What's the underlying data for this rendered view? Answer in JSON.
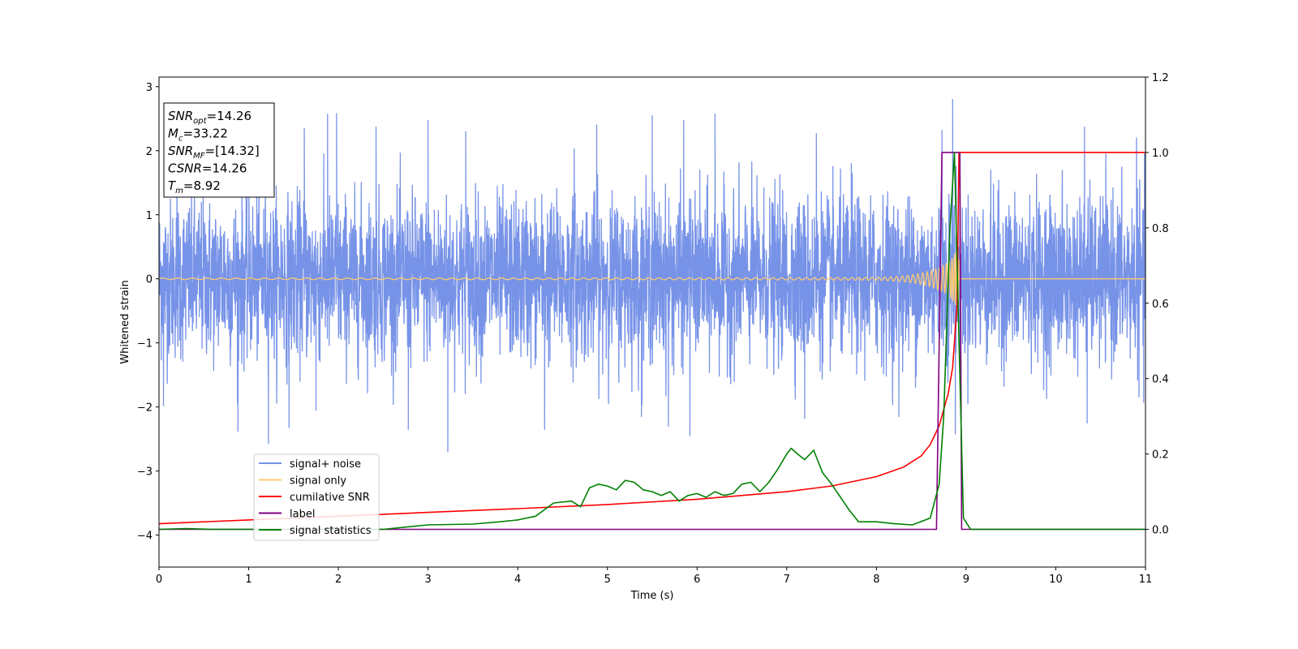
{
  "chart_data": {
    "type": "line",
    "xlabel": "Time (s)",
    "ylabel": "Whitened strain",
    "xlim": [
      0,
      11
    ],
    "ylim": [
      -4.5,
      3.15
    ],
    "y2lim": [
      -0.1,
      1.2
    ],
    "x_ticks": [
      0,
      1,
      2,
      3,
      4,
      5,
      6,
      7,
      8,
      9,
      10,
      11
    ],
    "y_ticks": [
      -4,
      -3,
      -2,
      -1,
      0,
      1,
      2,
      3
    ],
    "y2_ticks": [
      0.0,
      0.2,
      0.4,
      0.6,
      0.8,
      1.0,
      1.2
    ],
    "x_tick_labels": [
      "0",
      "1",
      "2",
      "3",
      "4",
      "5",
      "6",
      "7",
      "8",
      "9",
      "10",
      "11"
    ],
    "y_tick_labels": [
      "−4",
      "−3",
      "−2",
      "−1",
      "0",
      "1",
      "2",
      "3"
    ],
    "y2_tick_labels": [
      "0.0",
      "0.2",
      "0.4",
      "0.6",
      "0.8",
      "1.0",
      "1.2"
    ],
    "legend_position": "lower-left",
    "annotation": {
      "lines": [
        {
          "main": "SNR",
          "sub": "opt",
          "rest": "=14.26"
        },
        {
          "main": "M",
          "sub": "c",
          "rest": "=33.22"
        },
        {
          "main": "SNR",
          "sub": "MF",
          "rest": "=[14.32]"
        },
        {
          "main": "CSNR",
          "sub": "",
          "rest": "=14.26"
        },
        {
          "main": "T",
          "sub": "m",
          "rest": "=8.92"
        }
      ]
    },
    "series": [
      {
        "name": "signal+ noise",
        "axis": "left",
        "color": "#7793e8",
        "noise_model": {
          "std": 0.62,
          "sample_rate": 400,
          "range": [
            0,
            11
          ]
        },
        "max_peaks": [
          [
            0.2,
            1.35
          ],
          [
            0.98,
            2.35
          ],
          [
            1.62,
            2.35
          ],
          [
            1.88,
            2.57
          ],
          [
            1.98,
            2.58
          ],
          [
            2.42,
            2.37
          ],
          [
            3.0,
            2.47
          ],
          [
            3.42,
            2.3
          ],
          [
            4.63,
            2.03
          ],
          [
            4.88,
            2.4
          ],
          [
            5.5,
            2.55
          ],
          [
            5.85,
            2.47
          ],
          [
            6.2,
            2.57
          ],
          [
            7.33,
            2.27
          ],
          [
            7.72,
            1.8
          ],
          [
            8.73,
            2.32
          ],
          [
            8.85,
            2.8
          ],
          [
            10.32,
            2.37
          ],
          [
            10.9,
            2.2
          ]
        ],
        "min_peaks": [
          [
            0.05,
            -1.98
          ],
          [
            0.88,
            -2.38
          ],
          [
            1.22,
            -2.57
          ],
          [
            1.45,
            -2.32
          ],
          [
            1.75,
            -2.05
          ],
          [
            2.78,
            -2.35
          ],
          [
            3.22,
            -2.7
          ],
          [
            4.3,
            -2.35
          ],
          [
            5.38,
            -2.15
          ],
          [
            5.68,
            -2.3
          ],
          [
            5.92,
            -2.45
          ],
          [
            7.2,
            -2.18
          ],
          [
            8.25,
            -2.15
          ],
          [
            8.88,
            -2.42
          ],
          [
            10.35,
            -2.25
          ],
          [
            10.98,
            -1.93
          ]
        ]
      },
      {
        "name": "signal only",
        "axis": "left",
        "color": "#fdc872",
        "chirp_model": {
          "f0": 6,
          "tau0": 8.92,
          "merger": 8.92,
          "amp_end": 0.45,
          "amp_start": 0.012
        }
      },
      {
        "name": "cumilative SNR",
        "axis": "right",
        "color": "#ff0000",
        "x": [
          0,
          1,
          2,
          3,
          4,
          5,
          6,
          7,
          7.5,
          8,
          8.3,
          8.5,
          8.6,
          8.7,
          8.8,
          8.85,
          8.9,
          8.92,
          11
        ],
        "y": [
          0.015,
          0.025,
          0.035,
          0.045,
          0.055,
          0.066,
          0.08,
          0.1,
          0.115,
          0.14,
          0.165,
          0.195,
          0.225,
          0.275,
          0.36,
          0.43,
          0.6,
          1.0,
          1.0
        ]
      },
      {
        "name": "label",
        "axis": "right",
        "color": "#800080",
        "x": [
          0,
          8.67,
          8.73,
          8.93,
          8.95,
          11
        ],
        "y": [
          0.0,
          0.0,
          1.0,
          1.0,
          0.0,
          0.0
        ]
      },
      {
        "name": "signal statistics",
        "axis": "right",
        "color": "#008000",
        "x": [
          0,
          0.3,
          0.6,
          1,
          1.5,
          2,
          2.5,
          3,
          3.5,
          3.8,
          4.0,
          4.2,
          4.4,
          4.6,
          4.7,
          4.8,
          4.9,
          5.0,
          5.1,
          5.2,
          5.3,
          5.4,
          5.5,
          5.6,
          5.7,
          5.8,
          5.9,
          6.0,
          6.1,
          6.2,
          6.3,
          6.4,
          6.5,
          6.6,
          6.7,
          6.8,
          6.9,
          7.0,
          7.05,
          7.12,
          7.2,
          7.3,
          7.4,
          7.5,
          7.6,
          7.7,
          7.8,
          7.9,
          8.0,
          8.2,
          8.4,
          8.6,
          8.7,
          8.75,
          8.82,
          8.87,
          8.92,
          8.97,
          9.05,
          10,
          11
        ],
        "y": [
          0.0,
          0.002,
          0.0,
          0.0,
          0.0,
          0.0,
          0.0,
          0.012,
          0.014,
          0.02,
          0.025,
          0.035,
          0.07,
          0.075,
          0.06,
          0.11,
          0.12,
          0.115,
          0.105,
          0.13,
          0.125,
          0.105,
          0.1,
          0.09,
          0.1,
          0.075,
          0.09,
          0.095,
          0.085,
          0.1,
          0.09,
          0.095,
          0.12,
          0.125,
          0.1,
          0.125,
          0.16,
          0.2,
          0.215,
          0.2,
          0.185,
          0.21,
          0.15,
          0.12,
          0.085,
          0.05,
          0.02,
          0.02,
          0.02,
          0.015,
          0.012,
          0.03,
          0.12,
          0.3,
          0.8,
          1.0,
          0.5,
          0.03,
          0.0,
          0.0,
          0.0
        ]
      }
    ]
  }
}
